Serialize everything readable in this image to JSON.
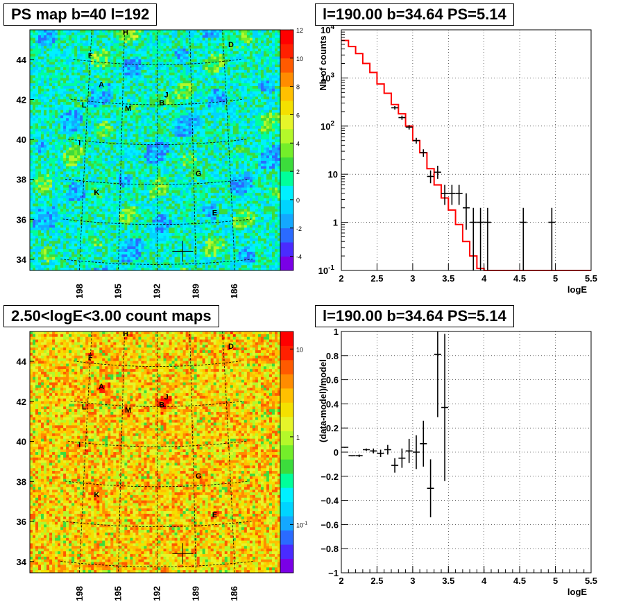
{
  "chart_data": [
    {
      "type": "heatmap",
      "title": "PS map b=40 l=192",
      "xlabel": "",
      "ylabel": "",
      "x_ticks": [
        "198",
        "195",
        "192",
        "189",
        "186"
      ],
      "y_ticks": [
        "44",
        "42",
        "40",
        "38",
        "36",
        "34"
      ],
      "color_scale": "linear",
      "colorbar_ticks": [
        "12",
        "10",
        "8",
        "6",
        "4",
        "2",
        "0",
        "-2",
        "-4"
      ],
      "zlim": [
        -5,
        12
      ],
      "palette": [
        "#7a00e6",
        "#4a2bff",
        "#2a6bff",
        "#14a8ff",
        "#00d4ff",
        "#00f0ff",
        "#00ff9a",
        "#3cdc3c",
        "#74ee2a",
        "#b4f82a",
        "#e6f52a",
        "#f4e000",
        "#ffc000",
        "#ff8c00",
        "#ff5a00",
        "#ff2000",
        "#ff0000"
      ],
      "background_level": 0.3,
      "sources": [
        {
          "label": "A",
          "l": 196.9,
          "b": 42.9
        },
        {
          "label": "B",
          "l": 191.6,
          "b": 42.1
        },
        {
          "label": "C",
          "l": 185.7,
          "b": 45.6
        },
        {
          "label": "D",
          "l": 185.3,
          "b": 44.8
        },
        {
          "label": "E",
          "l": 187.4,
          "b": 36.5
        },
        {
          "label": "F",
          "l": 198.0,
          "b": 44.3
        },
        {
          "label": "G",
          "l": 188.6,
          "b": 38.5
        },
        {
          "label": "H",
          "l": 194.9,
          "b": 45.6
        },
        {
          "label": "I",
          "l": 198.5,
          "b": 39.9
        },
        {
          "label": "J",
          "l": 191.2,
          "b": 42.5
        },
        {
          "label": "K",
          "l": 196.9,
          "b": 37.5
        },
        {
          "label": "L",
          "l": 198.3,
          "b": 41.8
        },
        {
          "label": "M",
          "l": 194.5,
          "b": 41.8
        }
      ],
      "marker": {
        "l": 190.0,
        "b": 34.64
      }
    },
    {
      "type": "line",
      "title": "l=190.00 b=34.64 PS=5.14",
      "xlabel": "logE",
      "ylabel": "Nb of counts",
      "ylog": true,
      "xlim": [
        2,
        5.5
      ],
      "ylim": [
        0.1,
        10000
      ],
      "x_ticks": [
        "2",
        "2.5",
        "3",
        "3.5",
        "4",
        "4.5",
        "5",
        "5.5"
      ],
      "y_ticks": [
        "10^4",
        "10^3",
        "10^2",
        "10",
        "1",
        "10^-1"
      ],
      "grid": true,
      "series": [
        {
          "kind": "data",
          "color": "#000000",
          "points": [
            {
              "x": 2.75,
              "y": 240,
              "ylo": 220,
              "yhi": 260
            },
            {
              "x": 2.85,
              "y": 150,
              "ylo": 135,
              "yhi": 165
            },
            {
              "x": 2.95,
              "y": 95,
              "ylo": 85,
              "yhi": 105
            },
            {
              "x": 3.05,
              "y": 50,
              "ylo": 43,
              "yhi": 57
            },
            {
              "x": 3.15,
              "y": 28,
              "ylo": 23,
              "yhi": 33
            },
            {
              "x": 3.25,
              "y": 9,
              "ylo": 6.5,
              "yhi": 12
            },
            {
              "x": 3.35,
              "y": 11,
              "ylo": 8,
              "yhi": 15
            },
            {
              "x": 3.45,
              "y": 4,
              "ylo": 2.3,
              "yhi": 6
            },
            {
              "x": 3.55,
              "y": 4,
              "ylo": 2.3,
              "yhi": 6
            },
            {
              "x": 3.65,
              "y": 4,
              "ylo": 2.3,
              "yhi": 6
            },
            {
              "x": 3.75,
              "y": 2,
              "ylo": 0.7,
              "yhi": 4
            },
            {
              "x": 3.85,
              "y": 1,
              "ylo": 0.1,
              "yhi": 2
            },
            {
              "x": 3.95,
              "y": 1,
              "ylo": 0.1,
              "yhi": 2
            },
            {
              "x": 4.05,
              "y": 1,
              "ylo": 0.1,
              "yhi": 2
            },
            {
              "x": 4.55,
              "y": 1,
              "ylo": 0.1,
              "yhi": 2
            },
            {
              "x": 4.95,
              "y": 1,
              "ylo": 0.1,
              "yhi": 2
            }
          ]
        },
        {
          "kind": "model",
          "color": "#ff0000",
          "bin_width": 0.1,
          "bin_starts": [
            2.0,
            2.1,
            2.2,
            2.3,
            2.4,
            2.5,
            2.6,
            2.7,
            2.8,
            2.9,
            3.0,
            3.1,
            3.2,
            3.3,
            3.4,
            3.5,
            3.6,
            3.7,
            3.8,
            3.9,
            4.0
          ],
          "values": [
            6000,
            4500,
            3200,
            2000,
            1300,
            750,
            480,
            280,
            180,
            100,
            50,
            28,
            13,
            6,
            3.2,
            1.8,
            0.9,
            0.4,
            0.2,
            0.11,
            0.1
          ]
        }
      ]
    },
    {
      "type": "heatmap",
      "title": "2.50<logE<3.00 count maps",
      "xlabel": "",
      "ylabel": "",
      "x_ticks": [
        "198",
        "195",
        "192",
        "189",
        "186"
      ],
      "y_ticks": [
        "44",
        "42",
        "40",
        "38",
        "36",
        "34"
      ],
      "color_scale": "log",
      "colorbar_ticks": [
        "10",
        "1",
        "10^-1"
      ],
      "palette": [
        "#7a00e6",
        "#4a2bff",
        "#2a6bff",
        "#14a8ff",
        "#00d4ff",
        "#00f0ff",
        "#00ff9a",
        "#3cdc3c",
        "#74ee2a",
        "#b4f82a",
        "#e6f52a",
        "#f4e000",
        "#ffc000",
        "#ff8c00",
        "#ff5a00",
        "#ff2000",
        "#ff0000"
      ],
      "sources": [
        {
          "label": "A",
          "l": 196.9,
          "b": 42.9
        },
        {
          "label": "B",
          "l": 191.6,
          "b": 42.1
        },
        {
          "label": "C",
          "l": 185.7,
          "b": 45.6
        },
        {
          "label": "D",
          "l": 185.3,
          "b": 44.8
        },
        {
          "label": "E",
          "l": 187.4,
          "b": 36.5
        },
        {
          "label": "F",
          "l": 198.0,
          "b": 44.3
        },
        {
          "label": "G",
          "l": 188.6,
          "b": 38.5
        },
        {
          "label": "H",
          "l": 194.9,
          "b": 45.6
        },
        {
          "label": "I",
          "l": 198.5,
          "b": 39.9
        },
        {
          "label": "J",
          "l": 191.2,
          "b": 42.5
        },
        {
          "label": "K",
          "l": 196.9,
          "b": 37.5
        },
        {
          "label": "L",
          "l": 198.3,
          "b": 41.8
        },
        {
          "label": "M",
          "l": 194.5,
          "b": 41.8
        }
      ],
      "marker": {
        "l": 190.0,
        "b": 34.64
      }
    },
    {
      "type": "scatter",
      "title": "l=190.00 b=34.64 PS=5.14",
      "xlabel": "logE",
      "ylabel": "(data-model)/model",
      "xlim": [
        2,
        5.5
      ],
      "ylim": [
        -1,
        1
      ],
      "x_ticks": [
        "2",
        "2.5",
        "3",
        "3.5",
        "4",
        "4.5",
        "5",
        "5.5"
      ],
      "y_ticks": [
        "1",
        "0.8",
        "0.6",
        "0.4",
        "0.2",
        "0",
        "−0.2",
        "−0.4",
        "−0.6",
        "−0.8",
        "−1"
      ],
      "grid": true,
      "points": [
        {
          "x": 2.05,
          "y": 0.04,
          "err": 0.005
        },
        {
          "x": 2.15,
          "y": -0.03,
          "err": 0.005
        },
        {
          "x": 2.25,
          "y": -0.03,
          "err": 0.01
        },
        {
          "x": 2.35,
          "y": 0.02,
          "err": 0.01
        },
        {
          "x": 2.45,
          "y": 0.01,
          "err": 0.02
        },
        {
          "x": 2.55,
          "y": -0.01,
          "err": 0.03
        },
        {
          "x": 2.65,
          "y": 0.02,
          "err": 0.04
        },
        {
          "x": 2.75,
          "y": -0.11,
          "err": 0.06
        },
        {
          "x": 2.85,
          "y": -0.05,
          "err": 0.08
        },
        {
          "x": 2.95,
          "y": 0.01,
          "err": 0.1
        },
        {
          "x": 3.05,
          "y": 0.0,
          "err": 0.14
        },
        {
          "x": 3.15,
          "y": 0.07,
          "err": 0.19
        },
        {
          "x": 3.25,
          "y": -0.3,
          "err": 0.24
        },
        {
          "x": 3.35,
          "y": 0.81,
          "err": 0.52
        },
        {
          "x": 3.45,
          "y": 0.37,
          "err": 0.61
        }
      ]
    }
  ]
}
